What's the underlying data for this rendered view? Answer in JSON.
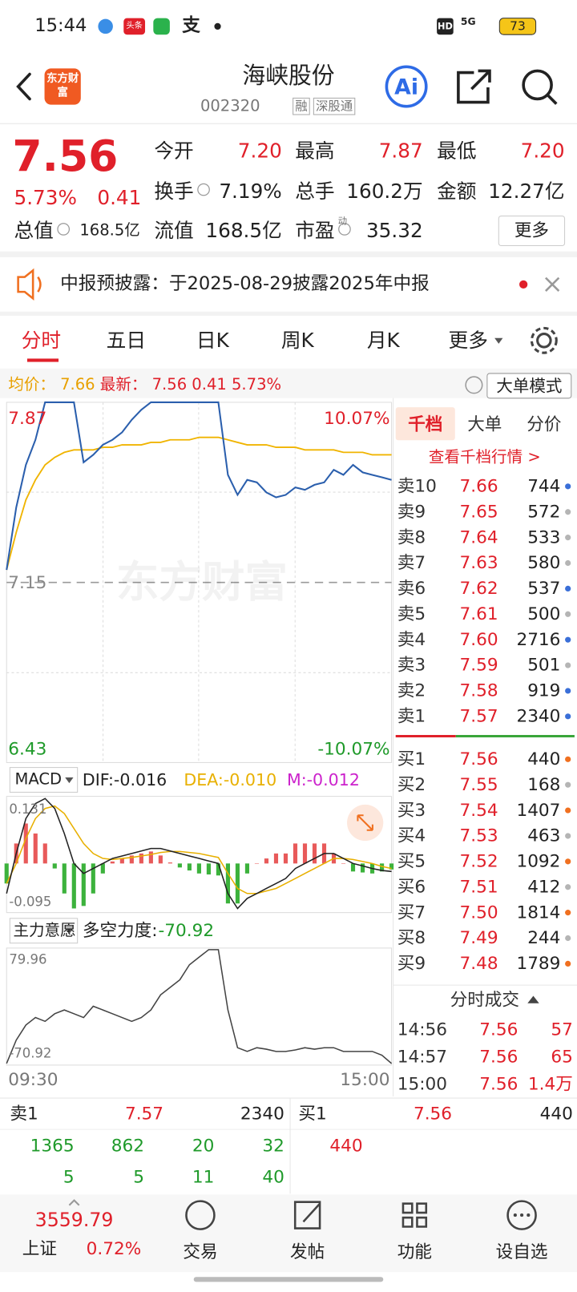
{
  "status_bar": {
    "time": "15:44",
    "news_icon": "头条",
    "pay_icon": "支",
    "hd": "HD",
    "network": "5G",
    "battery": "73"
  },
  "header": {
    "logo": "东方财富",
    "title": "海峡股份",
    "code": "002320",
    "tags": [
      "融",
      "深股通"
    ]
  },
  "quote": {
    "price": "7.56",
    "change_pct": "5.73%",
    "change": "0.41",
    "more": "更多",
    "fields": [
      {
        "label": "今开",
        "value": "7.20"
      },
      {
        "label": "最高",
        "value": "7.87"
      },
      {
        "label": "最低",
        "value": "7.20"
      },
      {
        "label": "换手",
        "value": "7.19%"
      },
      {
        "label": "总手",
        "value": "160.2万"
      },
      {
        "label": "金额",
        "value": "12.27亿"
      },
      {
        "label": "总值",
        "value": "168.5亿"
      },
      {
        "label": "流值",
        "value": "168.5亿"
      },
      {
        "label": "市盈",
        "sup": "动",
        "value": "35.32"
      }
    ]
  },
  "notice": {
    "text": "中报预披露：于2025-08-29披露2025年中报"
  },
  "tabs": {
    "items": [
      "分时",
      "五日",
      "日K",
      "周K",
      "月K",
      "更多"
    ],
    "active": 0
  },
  "info": {
    "avg_label": "均价：",
    "avg": "7.66",
    "latest_label": "最新：",
    "latest": "7.56",
    "change": "0.41",
    "change_pct": "5.73%",
    "mode_button": "大单模式"
  },
  "price_chart": {
    "watermark": "东方财富",
    "ylim": [
      6.43,
      7.87
    ],
    "prev_close": 7.15,
    "pct_top": "10.07%",
    "pct_bottom": "-10.07%",
    "time_start": "09:30",
    "time_end": "15:00",
    "price_color": "#2b5fad",
    "avg_color": "#f0b400",
    "price": [
      7.2,
      7.45,
      7.62,
      7.72,
      7.87,
      7.87,
      7.87,
      7.87,
      7.63,
      7.66,
      7.7,
      7.72,
      7.75,
      7.8,
      7.84,
      7.87,
      7.87,
      7.87,
      7.87,
      7.87,
      7.87,
      7.87,
      7.87,
      7.58,
      7.5,
      7.56,
      7.55,
      7.51,
      7.49,
      7.5,
      7.53,
      7.52,
      7.54,
      7.55,
      7.6,
      7.58,
      7.62,
      7.59,
      7.58,
      7.57,
      7.56
    ],
    "avg": [
      7.2,
      7.35,
      7.48,
      7.56,
      7.62,
      7.65,
      7.67,
      7.68,
      7.68,
      7.68,
      7.69,
      7.69,
      7.7,
      7.7,
      7.7,
      7.71,
      7.71,
      7.72,
      7.72,
      7.72,
      7.73,
      7.73,
      7.73,
      7.72,
      7.71,
      7.7,
      7.7,
      7.7,
      7.69,
      7.69,
      7.69,
      7.68,
      7.68,
      7.68,
      7.68,
      7.67,
      7.67,
      7.67,
      7.66,
      7.66,
      7.66
    ]
  },
  "macd": {
    "indicator": "MACD",
    "dif_label": "DIF:-0.016",
    "dea_label": "DEA:-0.010",
    "m_label": "M:-0.012",
    "ylim": [
      -0.095,
      0.131
    ],
    "dif": [
      -0.06,
      0.02,
      0.09,
      0.12,
      0.13,
      0.11,
      0.06,
      0.0,
      -0.02,
      -0.01,
      0.0,
      0.01,
      0.015,
      0.02,
      0.025,
      0.03,
      0.03,
      0.025,
      0.02,
      0.015,
      0.01,
      0.005,
      0.0,
      -0.06,
      -0.09,
      -0.07,
      -0.06,
      -0.05,
      -0.04,
      -0.03,
      -0.01,
      0.0,
      0.01,
      0.02,
      0.02,
      0.01,
      0.0,
      -0.005,
      -0.01,
      -0.014,
      -0.016
    ],
    "dea": [
      -0.04,
      0.0,
      0.05,
      0.09,
      0.11,
      0.115,
      0.1,
      0.07,
      0.04,
      0.02,
      0.01,
      0.008,
      0.01,
      0.012,
      0.015,
      0.018,
      0.022,
      0.024,
      0.024,
      0.022,
      0.02,
      0.016,
      0.012,
      -0.02,
      -0.05,
      -0.06,
      -0.06,
      -0.055,
      -0.05,
      -0.04,
      -0.03,
      -0.02,
      -0.01,
      0.0,
      0.01,
      0.01,
      0.008,
      0.004,
      0.0,
      -0.006,
      -0.01
    ],
    "hist": [
      -0.04,
      0.04,
      0.08,
      0.06,
      0.04,
      -0.01,
      -0.06,
      -0.09,
      -0.085,
      -0.06,
      -0.02,
      0.004,
      0.01,
      0.016,
      0.02,
      0.024,
      0.016,
      0.002,
      -0.008,
      -0.014,
      -0.02,
      -0.022,
      -0.024,
      -0.08,
      -0.08,
      -0.02,
      0.0,
      0.01,
      0.02,
      0.02,
      0.04,
      0.04,
      0.04,
      0.04,
      0.02,
      0.0,
      -0.016,
      -0.018,
      -0.02,
      -0.016,
      -0.012
    ]
  },
  "force": {
    "indicator": "主力意愿",
    "strength_label": "多空力度:",
    "strength": "-70.92",
    "ylim": [
      -70.92,
      79.96
    ],
    "values": [
      -70.92,
      -40,
      -20,
      -10,
      -15,
      -5,
      0,
      -5,
      -10,
      5,
      0,
      -5,
      -10,
      -15,
      -10,
      0,
      20,
      30,
      40,
      60,
      70,
      79.96,
      79.96,
      0,
      -50,
      -55,
      -50,
      -52,
      -55,
      -55,
      -53,
      -50,
      -52,
      -50,
      -50,
      -55,
      -55,
      -55,
      -55,
      -60,
      -70.92
    ]
  },
  "order_book": {
    "tabs": [
      "千档",
      "大单",
      "分价"
    ],
    "link": "查看千档行情 >",
    "asks": [
      {
        "label": "卖10",
        "price": "7.66",
        "volume": "744",
        "dot": "#3a6fd8"
      },
      {
        "label": "卖9",
        "price": "7.65",
        "volume": "572",
        "dot": "#b5b5b5"
      },
      {
        "label": "卖8",
        "price": "7.64",
        "volume": "533",
        "dot": "#b5b5b5"
      },
      {
        "label": "卖7",
        "price": "7.63",
        "volume": "580",
        "dot": "#b5b5b5"
      },
      {
        "label": "卖6",
        "price": "7.62",
        "volume": "537",
        "dot": "#3a6fd8"
      },
      {
        "label": "卖5",
        "price": "7.61",
        "volume": "500",
        "dot": "#b5b5b5"
      },
      {
        "label": "卖4",
        "price": "7.60",
        "volume": "2716",
        "dot": "#3a6fd8"
      },
      {
        "label": "卖3",
        "price": "7.59",
        "volume": "501",
        "dot": "#b5b5b5"
      },
      {
        "label": "卖2",
        "price": "7.58",
        "volume": "919",
        "dot": "#3a6fd8"
      },
      {
        "label": "卖1",
        "price": "7.57",
        "volume": "2340",
        "dot": "#3a6fd8"
      }
    ],
    "bids": [
      {
        "label": "买1",
        "price": "7.56",
        "volume": "440",
        "dot": "#f07020"
      },
      {
        "label": "买2",
        "price": "7.55",
        "volume": "168",
        "dot": "#b5b5b5"
      },
      {
        "label": "买3",
        "price": "7.54",
        "volume": "1407",
        "dot": "#f07020"
      },
      {
        "label": "买4",
        "price": "7.53",
        "volume": "463",
        "dot": "#b5b5b5"
      },
      {
        "label": "买5",
        "price": "7.52",
        "volume": "1092",
        "dot": "#f07020"
      },
      {
        "label": "买6",
        "price": "7.51",
        "volume": "412",
        "dot": "#b5b5b5"
      },
      {
        "label": "买7",
        "price": "7.50",
        "volume": "1814",
        "dot": "#f07020"
      },
      {
        "label": "买8",
        "price": "7.49",
        "volume": "244",
        "dot": "#b5b5b5"
      },
      {
        "label": "买9",
        "price": "7.48",
        "volume": "1789",
        "dot": "#f07020"
      }
    ]
  },
  "trades": {
    "title": "分时成交",
    "rows": [
      {
        "time": "14:56",
        "price": "7.56",
        "volume": "57"
      },
      {
        "time": "14:57",
        "price": "7.56",
        "volume": "65"
      },
      {
        "time": "15:00",
        "price": "7.56",
        "volume": "1.4万"
      }
    ]
  },
  "level1": {
    "sell": {
      "label": "卖1",
      "price": "7.57",
      "volume": "2340"
    },
    "buy": {
      "label": "买1",
      "price": "7.56",
      "volume": "440"
    },
    "sell_queue": [
      [
        "1365",
        "862",
        "20",
        "32"
      ],
      [
        "5",
        "5",
        "11",
        "40"
      ]
    ],
    "buy_queue": [
      [
        "440"
      ]
    ]
  },
  "nav": {
    "index_value": "3559.79",
    "index_name": "上证",
    "index_change": "0.72%",
    "items": [
      "交易",
      "发帖",
      "功能",
      "设自选"
    ]
  }
}
